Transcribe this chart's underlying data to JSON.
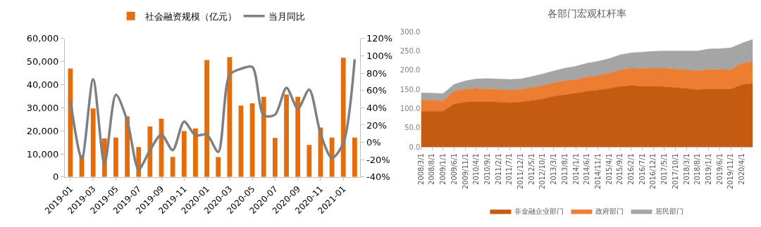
{
  "chart_data": [
    {
      "type": "bar",
      "categories": [
        "2019-01",
        null,
        "2019-03",
        null,
        "2019-05",
        null,
        "2019-07",
        null,
        "2019-09",
        null,
        "2019-11",
        null,
        "2020-01",
        null,
        "2020-03",
        null,
        "2020-05",
        null,
        "2020-07",
        null,
        "2020-09",
        null,
        "2020-11",
        null,
        "2021-01",
        null
      ],
      "series": [
        {
          "name": "社会融资规模（亿元）",
          "type": "bar",
          "color": "#e46c0a",
          "values": [
            47000,
            9500,
            29700,
            16700,
            17100,
            26300,
            13000,
            21900,
            25200,
            8700,
            19900,
            21000,
            50600,
            8600,
            51900,
            30900,
            31900,
            34700,
            16900,
            35700,
            34700,
            13900,
            21400,
            17100,
            51600,
            17100
          ]
        },
        {
          "name": "当月同比",
          "type": "line",
          "axis": "y2",
          "color": "#7f7f7f",
          "values": [
            49,
            -19,
            73,
            -25,
            55,
            25,
            -31,
            -9,
            9,
            -9,
            24,
            8,
            9,
            -11,
            78,
            85,
            87,
            31,
            32,
            63,
            39,
            61,
            10,
            -18,
            -1,
            96
          ]
        }
      ],
      "ylim": [
        0,
        60000
      ],
      "yticks": [
        {
          "value": 0,
          "label": "0"
        },
        {
          "value": 10000,
          "label": "10,000"
        },
        {
          "value": 20000,
          "label": "20,000"
        },
        {
          "value": 30000,
          "label": "30,000"
        },
        {
          "value": 40000,
          "label": "40,000"
        },
        {
          "value": 50000,
          "label": "50,000"
        },
        {
          "value": 60000,
          "label": "60,000"
        }
      ],
      "y2lim": [
        -40,
        120
      ],
      "y2ticks": [
        {
          "value": -40,
          "label": "-40%"
        },
        {
          "value": -20,
          "label": "-20%"
        },
        {
          "value": 0,
          "label": "0%"
        },
        {
          "value": 20,
          "label": "20%"
        },
        {
          "value": 40,
          "label": "40%"
        },
        {
          "value": 60,
          "label": "60%"
        },
        {
          "value": 80,
          "label": "80%"
        },
        {
          "value": 100,
          "label": "100%"
        },
        {
          "value": 120,
          "label": "120%"
        }
      ],
      "legend": "top"
    },
    {
      "type": "area",
      "title": "各部门宏观杠杆率",
      "stacked": true,
      "categories": [
        "2008/3/1",
        "2008/8/1",
        "2009/1/1",
        "2009/6/1",
        "2009/11/1",
        "2010/4/1",
        "2010/9/1",
        "2011/2/1",
        "2011/7/1",
        "2011/12/1",
        "2012/5/1",
        "2012/10/1",
        "2013/3/1",
        "2013/8/1",
        "2014/1/1",
        "2014/6/1",
        "2014/11/1",
        "2015/4/1",
        "2015/9/1",
        "2016/2/1",
        "2016/7/1",
        "2016/12/1",
        "2017/5/1",
        "2017/10/1",
        "2018/3/1",
        "2018/8/1",
        "2019/1/1",
        "2019/6/1",
        "2019/11/1",
        "2020/4/1",
        null
      ],
      "series": [
        {
          "name": "非金融企业部门",
          "color": "#c55a11",
          "values": [
            93,
            93,
            93,
            112,
            117,
            118,
            118,
            117,
            115,
            117,
            121,
            125,
            132,
            136,
            140,
            145,
            148,
            152,
            158,
            160,
            158,
            158,
            157,
            155,
            152,
            149,
            151,
            150,
            150,
            162,
            165
          ]
        },
        {
          "name": "政府部门",
          "color": "#ed7d31",
          "values": [
            29,
            28,
            27,
            33,
            33,
            34,
            33,
            33,
            33,
            33,
            34,
            35,
            35,
            36,
            36,
            37,
            38,
            40,
            42,
            45,
            46,
            47,
            48,
            48,
            49,
            49,
            51,
            52,
            51,
            56,
            57
          ]
        },
        {
          "name": "居民部门",
          "color": "#a5a5a5",
          "values": [
            19,
            19,
            19,
            18,
            22,
            25,
            27,
            27,
            28,
            27,
            28,
            30,
            31,
            33,
            34,
            36,
            37,
            38,
            40,
            40,
            43,
            44,
            45,
            47,
            49,
            52,
            53,
            54,
            57,
            52,
            58
          ]
        }
      ],
      "ylim": [
        0,
        300
      ],
      "yticks": [
        {
          "value": 0,
          "label": "0.0"
        },
        {
          "value": 50,
          "label": "50.0"
        },
        {
          "value": 100,
          "label": "100.0"
        },
        {
          "value": 150,
          "label": "150.0"
        },
        {
          "value": 200,
          "label": "200.0"
        },
        {
          "value": 250,
          "label": "250.0"
        },
        {
          "value": 300,
          "label": "300.0"
        }
      ],
      "legend": "bottom"
    }
  ]
}
